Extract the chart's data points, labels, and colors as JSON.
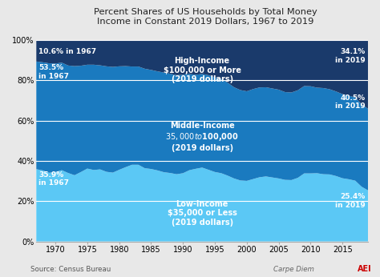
{
  "title": "Percent Shares of US Households by Total Money\nIncome in Constant 2019 Dollars, 1967 to 2019",
  "source": "Source: Census Bureau",
  "watermark": "Carpe Diem",
  "background_color": "#e8e8e8",
  "plot_bg_color": "#ffffff",
  "years": [
    1967,
    1968,
    1969,
    1970,
    1971,
    1972,
    1973,
    1974,
    1975,
    1976,
    1977,
    1978,
    1979,
    1980,
    1981,
    1982,
    1983,
    1984,
    1985,
    1986,
    1987,
    1988,
    1989,
    1990,
    1991,
    1992,
    1993,
    1994,
    1995,
    1996,
    1997,
    1998,
    1999,
    2000,
    2001,
    2002,
    2003,
    2004,
    2005,
    2006,
    2007,
    2008,
    2009,
    2010,
    2011,
    2012,
    2013,
    2014,
    2015,
    2016,
    2017,
    2018,
    2019
  ],
  "low_income": [
    35.9,
    35.3,
    34.1,
    34.5,
    35.4,
    34.0,
    32.9,
    34.5,
    36.2,
    35.5,
    35.8,
    34.6,
    34.2,
    35.6,
    36.9,
    38.1,
    38.1,
    36.4,
    36.0,
    35.3,
    34.4,
    34.0,
    33.4,
    33.9,
    35.4,
    36.1,
    36.7,
    35.6,
    34.5,
    33.9,
    32.7,
    31.3,
    30.3,
    30.1,
    31.0,
    31.9,
    32.3,
    31.8,
    31.3,
    30.6,
    30.5,
    31.6,
    33.8,
    33.8,
    33.9,
    33.4,
    33.3,
    32.5,
    31.4,
    30.9,
    30.2,
    27.2,
    25.4
  ],
  "middle_income": [
    53.5,
    53.7,
    54.4,
    53.9,
    53.4,
    53.4,
    54.2,
    52.8,
    51.6,
    52.3,
    51.7,
    52.4,
    52.5,
    51.4,
    50.2,
    48.8,
    48.8,
    49.4,
    49.2,
    49.2,
    49.5,
    49.3,
    49.2,
    48.9,
    47.8,
    46.7,
    46.5,
    47.0,
    47.0,
    46.8,
    46.2,
    45.3,
    44.9,
    44.5,
    44.7,
    44.6,
    44.3,
    44.2,
    44.1,
    43.6,
    43.5,
    43.5,
    43.4,
    43.3,
    42.5,
    42.8,
    42.3,
    42.0,
    41.8,
    41.5,
    41.4,
    41.0,
    40.5
  ],
  "high_income": [
    10.6,
    11.0,
    11.5,
    11.6,
    11.2,
    12.6,
    12.9,
    12.7,
    12.2,
    12.2,
    12.5,
    13.0,
    13.3,
    13.0,
    12.9,
    13.1,
    13.1,
    14.2,
    14.8,
    15.5,
    16.1,
    16.7,
    17.4,
    17.2,
    16.8,
    17.2,
    16.8,
    17.4,
    18.5,
    19.3,
    21.1,
    23.4,
    24.8,
    25.4,
    24.3,
    23.5,
    23.4,
    24.0,
    24.6,
    25.8,
    26.0,
    24.9,
    22.8,
    22.9,
    23.6,
    23.8,
    24.4,
    25.5,
    26.8,
    27.6,
    28.4,
    31.8,
    34.1
  ],
  "low_color": "#5bc8f5",
  "mid_color": "#1a7abf",
  "high_color": "#1a3a6b",
  "grid_color": "#aaaaaa",
  "text_color_white": "#ffffff",
  "ylim": [
    0,
    100
  ],
  "yticks": [
    0,
    20,
    40,
    60,
    80,
    100
  ],
  "xticks": [
    1970,
    1975,
    1980,
    1985,
    1990,
    1995,
    2000,
    2005,
    2010,
    2015
  ]
}
